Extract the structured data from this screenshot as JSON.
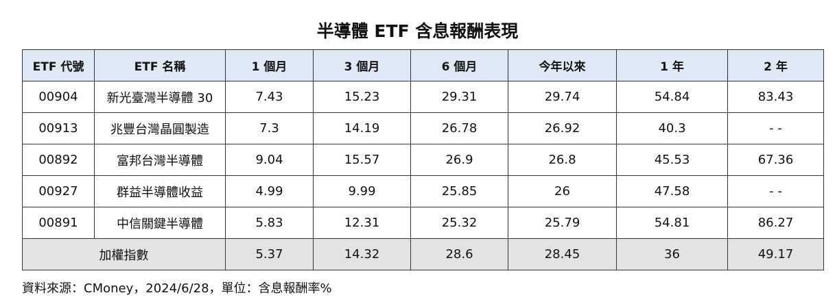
{
  "title": "半導體 ETF 含息報酬表現",
  "table": {
    "header": [
      "ETF 代號",
      "ETF 名稱",
      "1 個月",
      "3 個月",
      "6 個月",
      "今年以來",
      "1 年",
      "2 年"
    ],
    "rows": [
      [
        "00904",
        "新光臺灣半導體 30",
        "7.43",
        "15.23",
        "29.31",
        "29.74",
        "54.84",
        "83.43"
      ],
      [
        "00913",
        "兆豐台灣晶圓製造",
        "7.3",
        "14.19",
        "26.78",
        "26.92",
        "40.3",
        "- -"
      ],
      [
        "00892",
        "富邦台灣半導體",
        "9.04",
        "15.57",
        "26.9",
        "26.8",
        "45.53",
        "67.36"
      ],
      [
        "00927",
        "群益半導體收益",
        "4.99",
        "9.99",
        "25.85",
        "26",
        "47.58",
        "- -"
      ],
      [
        "00891",
        "中信關鍵半導體",
        "5.83",
        "12.31",
        "25.32",
        "25.79",
        "54.81",
        "86.27"
      ]
    ],
    "total": {
      "label": "加權指數",
      "values": [
        "5.37",
        "14.32",
        "28.6",
        "28.45",
        "36",
        "49.17"
      ]
    }
  },
  "source": "資料來源：CMoney，2024/6/28，單位：含息報酬率%"
}
